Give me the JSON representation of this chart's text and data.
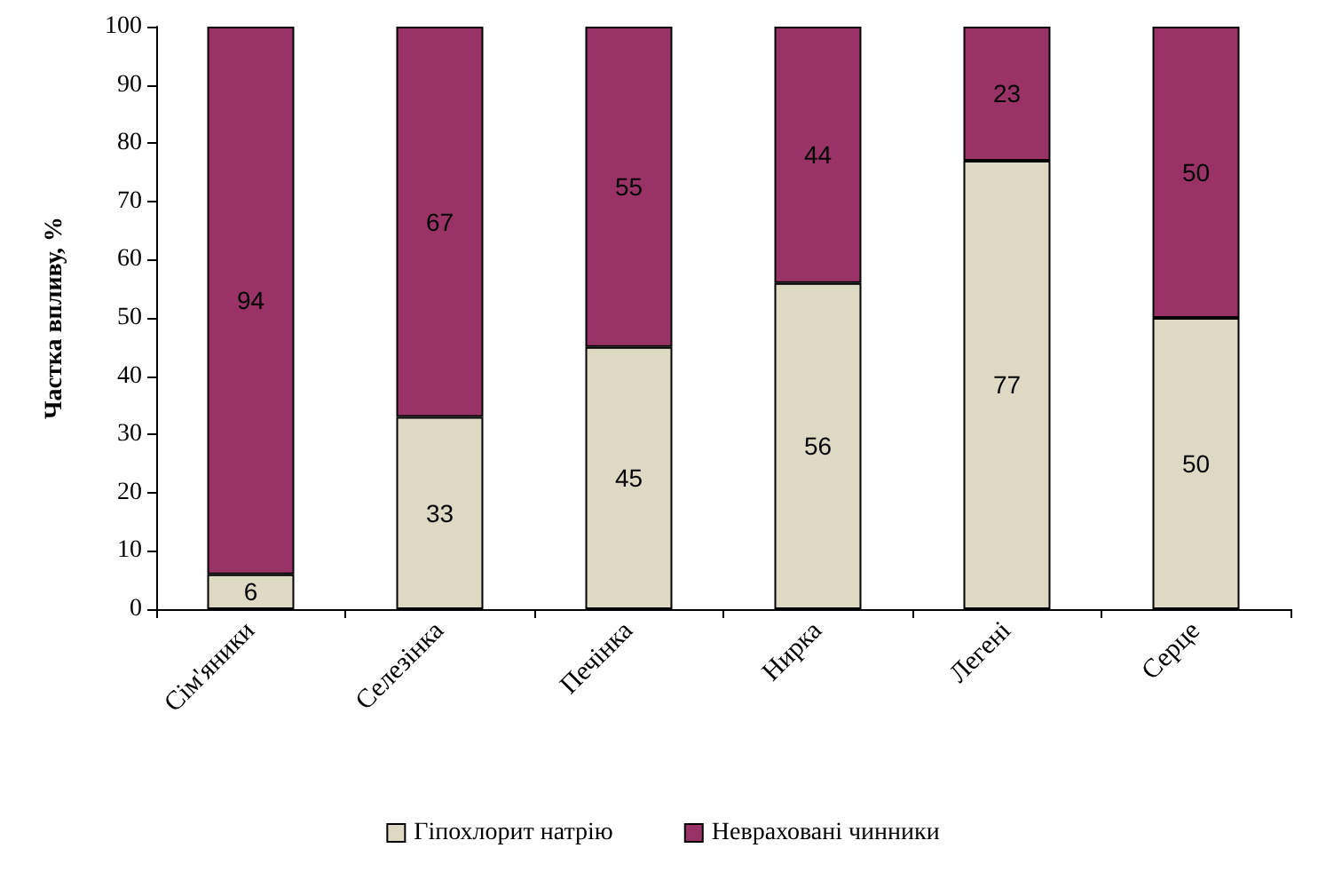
{
  "chart_data": {
    "type": "bar",
    "stacked": true,
    "ylabel": "Частка впливу, %",
    "categories": [
      "Сім'яники",
      "Селезінка",
      "Печінка",
      "Нирка",
      "Легені",
      "Серце"
    ],
    "series": [
      {
        "name": "Гіпохлорит натрію",
        "color": "#ddd9c3",
        "values": [
          6,
          33,
          45,
          56,
          77,
          50
        ]
      },
      {
        "name": "Невраховані чинники",
        "color": "#993366",
        "values": [
          94,
          67,
          55,
          44,
          23,
          50
        ]
      }
    ],
    "ylim": [
      0,
      100
    ],
    "yticks": [
      0,
      10,
      20,
      30,
      40,
      50,
      60,
      70,
      80,
      90,
      100
    ],
    "data_labels": true,
    "legend": "bottom",
    "grid": false
  }
}
